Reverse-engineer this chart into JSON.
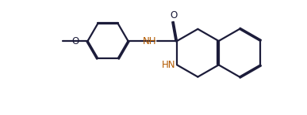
{
  "background": "#ffffff",
  "bond_color": "#1c1c3a",
  "atom_N_color": "#b35a00",
  "atom_O_color": "#1c1c3a",
  "lw": 1.6,
  "dbo": 0.055,
  "fs": 8.5,
  "figsize": [
    3.87,
    1.46
  ],
  "dpi": 100,
  "xlim": [
    -1.0,
    10.5
  ],
  "ylim": [
    -0.5,
    4.5
  ]
}
